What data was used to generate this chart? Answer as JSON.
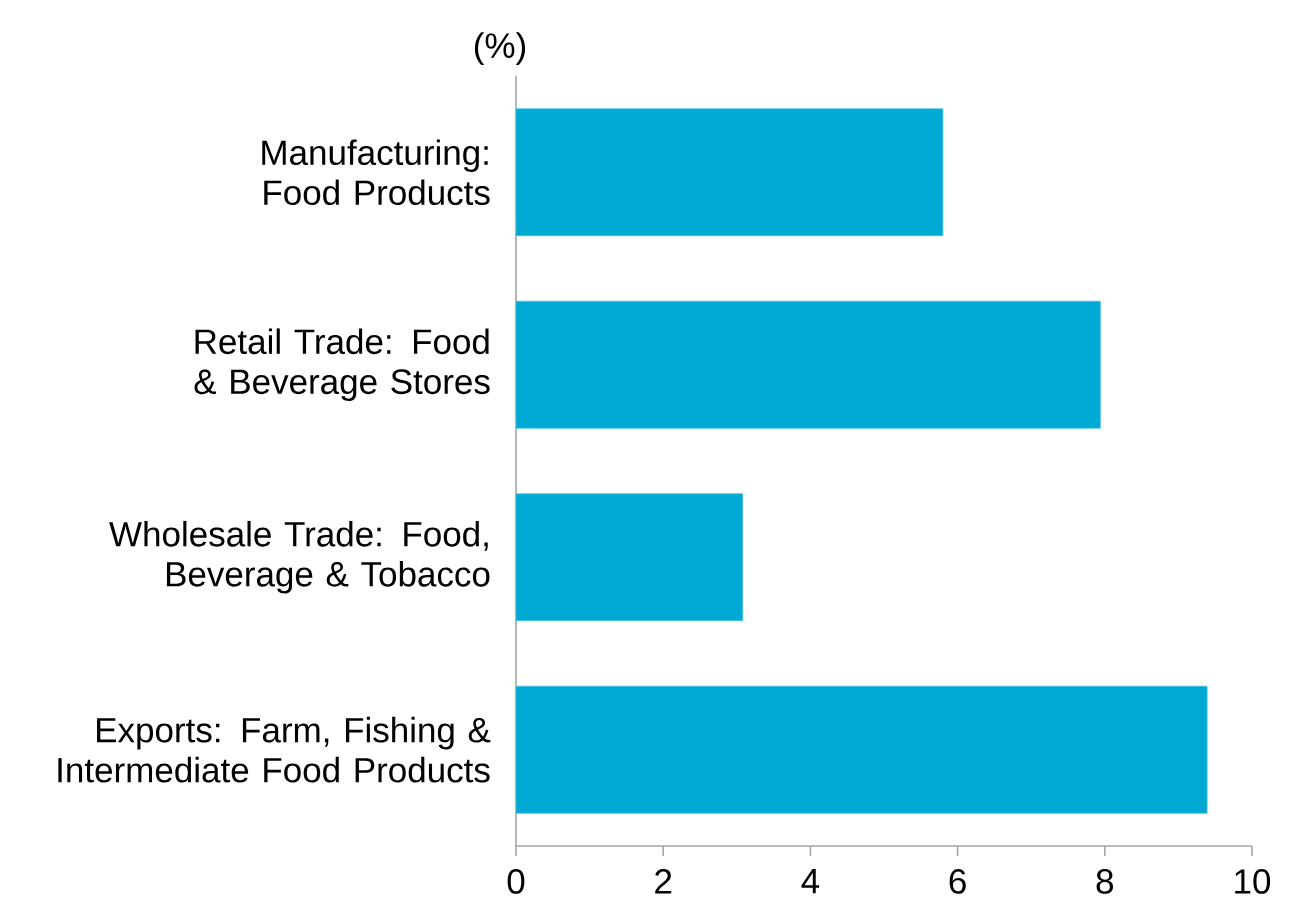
{
  "chart_data": {
    "type": "bar",
    "orientation": "horizontal",
    "xlabel": "(%)",
    "categories": [
      "Manufacturing: Food Products",
      "Retail Trade: Food & Beverage Stores",
      "Wholesale Trade: Food, Beverage & Tobacco",
      "Exports: Farm, Fishing & Intermediate Food Products"
    ],
    "values": [
      5.8,
      7.94,
      3.08,
      9.39
    ],
    "color": "#00a9d4",
    "xlim": [
      0,
      10
    ],
    "xticks": [
      0,
      2,
      4,
      6,
      8,
      10
    ]
  }
}
